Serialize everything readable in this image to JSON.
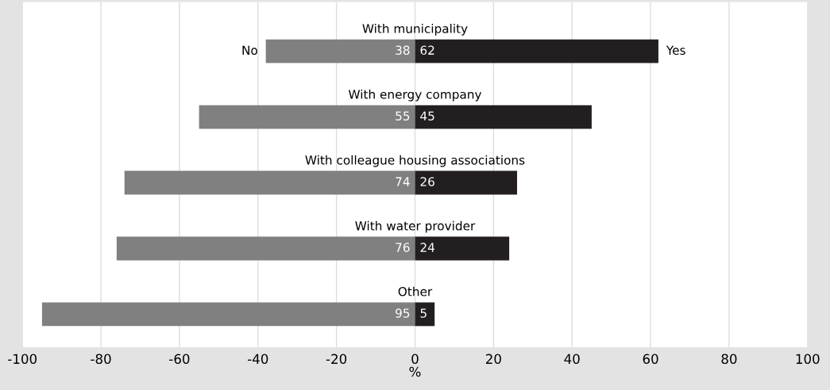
{
  "chart_data": {
    "type": "bar",
    "orientation": "horizontal",
    "stacked": true,
    "xlabel": "%",
    "categories": [
      "With municipality",
      "With energy company",
      "With colleague housing associations",
      "With water provider",
      "Other"
    ],
    "series": [
      {
        "name": "No",
        "color": "#808080",
        "values": [
          38,
          55,
          74,
          76,
          95
        ],
        "base": [
          -38,
          -55,
          -74,
          -76,
          -95
        ],
        "value_labels": [
          "38",
          "55",
          "74",
          "76",
          "95"
        ]
      },
      {
        "name": "Yes",
        "color": "#231f20",
        "values": [
          62,
          45,
          26,
          24,
          5
        ],
        "value_labels": [
          "62",
          "45",
          "26",
          "24",
          "5"
        ]
      }
    ],
    "xlim": [
      -100,
      100
    ],
    "xticks": [
      -100,
      -80,
      -60,
      -40,
      -20,
      0,
      20,
      40,
      60,
      80,
      100
    ],
    "grid": "x",
    "legend": false
  }
}
